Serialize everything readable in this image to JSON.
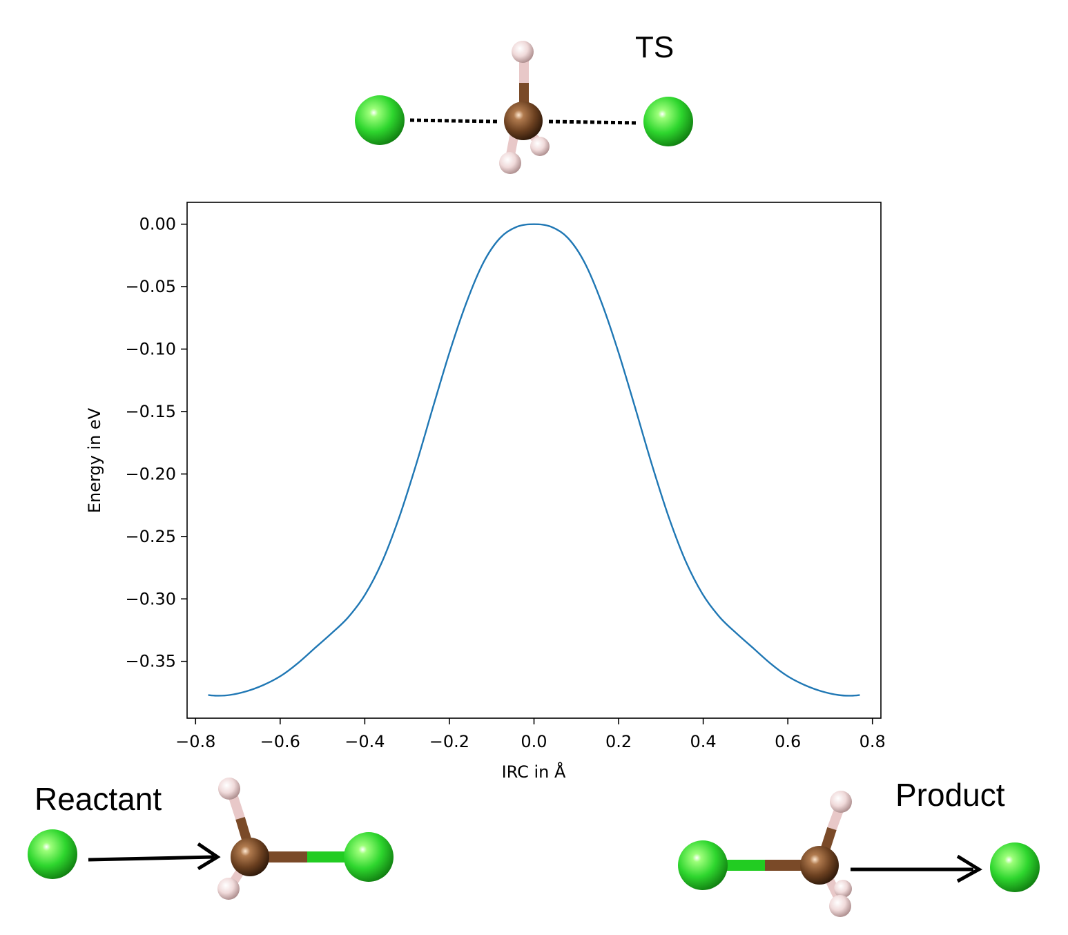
{
  "labels": {
    "ts": "TS",
    "reactant": "Reactant",
    "product": "Product"
  },
  "colors": {
    "curve": "#1f77b4",
    "chlorine": "#22cc22",
    "carbon": "#7a4a28",
    "hydrogen": "#e8c8c8"
  },
  "chart_data": {
    "type": "line",
    "xlabel": "IRC in Å",
    "ylabel": "Energy in eV",
    "xlim": [
      -0.82,
      0.82
    ],
    "ylim": [
      -0.3955,
      0.0175
    ],
    "xticks": [
      -0.8,
      -0.6,
      -0.4,
      -0.2,
      0.0,
      0.2,
      0.4,
      0.6,
      0.8
    ],
    "xtick_labels": [
      "−0.8",
      "−0.6",
      "−0.4",
      "−0.2",
      "0.0",
      "0.2",
      "0.4",
      "0.6",
      "0.8"
    ],
    "yticks": [
      0.0,
      -0.05,
      -0.1,
      -0.15,
      -0.2,
      -0.25,
      -0.3,
      -0.35
    ],
    "ytick_labels": [
      "0.00",
      "−0.05",
      "−0.10",
      "−0.15",
      "−0.20",
      "−0.25",
      "−0.30",
      "−0.35"
    ],
    "grid": false,
    "series": [
      {
        "x": [
          -0.77,
          -0.75,
          -0.72,
          -0.68,
          -0.64,
          -0.6,
          -0.56,
          -0.52,
          -0.48,
          -0.44,
          -0.4,
          -0.36,
          -0.32,
          -0.28,
          -0.24,
          -0.2,
          -0.16,
          -0.12,
          -0.08,
          -0.04,
          0.0,
          0.04,
          0.08,
          0.12,
          0.16,
          0.2,
          0.24,
          0.28,
          0.32,
          0.36,
          0.4,
          0.44,
          0.48,
          0.52,
          0.56,
          0.6,
          0.64,
          0.68,
          0.72,
          0.75,
          0.77
        ],
        "y": [
          -0.377,
          -0.3775,
          -0.377,
          -0.374,
          -0.369,
          -0.362,
          -0.352,
          -0.34,
          -0.328,
          -0.315,
          -0.297,
          -0.271,
          -0.236,
          -0.194,
          -0.148,
          -0.103,
          -0.063,
          -0.031,
          -0.011,
          -0.002,
          0.0,
          -0.002,
          -0.011,
          -0.031,
          -0.063,
          -0.103,
          -0.148,
          -0.194,
          -0.236,
          -0.271,
          -0.297,
          -0.315,
          -0.328,
          -0.34,
          -0.352,
          -0.362,
          -0.369,
          -0.374,
          -0.377,
          -0.3775,
          -0.377
        ]
      }
    ]
  }
}
